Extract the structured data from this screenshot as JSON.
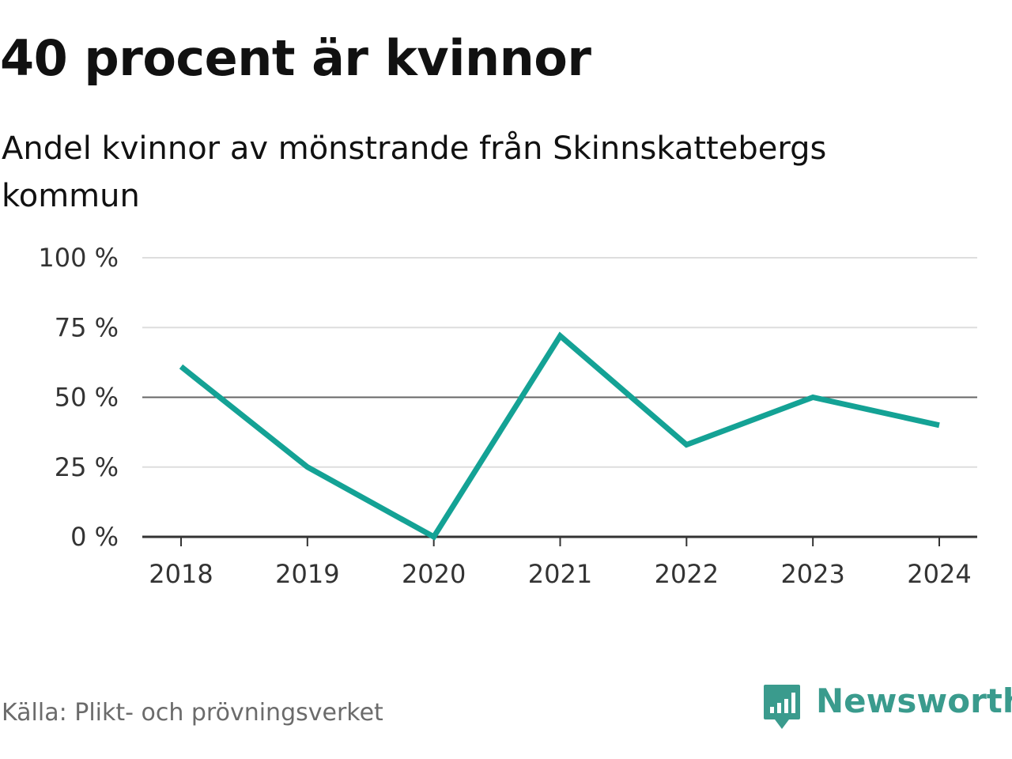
{
  "header": {
    "title": "40 procent är kvinnor",
    "subtitle": "Andel kvinnor av mönstrande från Skinnskattebergs kommun"
  },
  "footer": {
    "source": "Källa: Plikt- och prövningsverket",
    "brand_name": "Newsworthy",
    "brand_icon": "newsworthy-logo-icon"
  },
  "colors": {
    "series": "#14a295",
    "grid": "#dedede",
    "reference_line": "#666666",
    "axis": "#333333",
    "brand": "#3a9b8d"
  },
  "chart_data": {
    "type": "line",
    "title": "40 procent är kvinnor",
    "subtitle": "Andel kvinnor av mönstrande från Skinnskattebergs kommun",
    "xlabel": "",
    "ylabel": "",
    "x": [
      "2018",
      "2019",
      "2020",
      "2021",
      "2022",
      "2023",
      "2024"
    ],
    "series": [
      {
        "values": [
          61,
          25,
          0,
          72,
          33,
          50,
          40
        ]
      }
    ],
    "ylim": [
      0,
      100
    ],
    "yticks": [
      0,
      25,
      50,
      75,
      100
    ],
    "ytick_labels": [
      "0 %",
      "25 %",
      "50 %",
      "75 %",
      "100 %"
    ],
    "reference_line": 50,
    "grid": true,
    "legend": "none",
    "source": "Källa: Plikt- och prövningsverket"
  }
}
